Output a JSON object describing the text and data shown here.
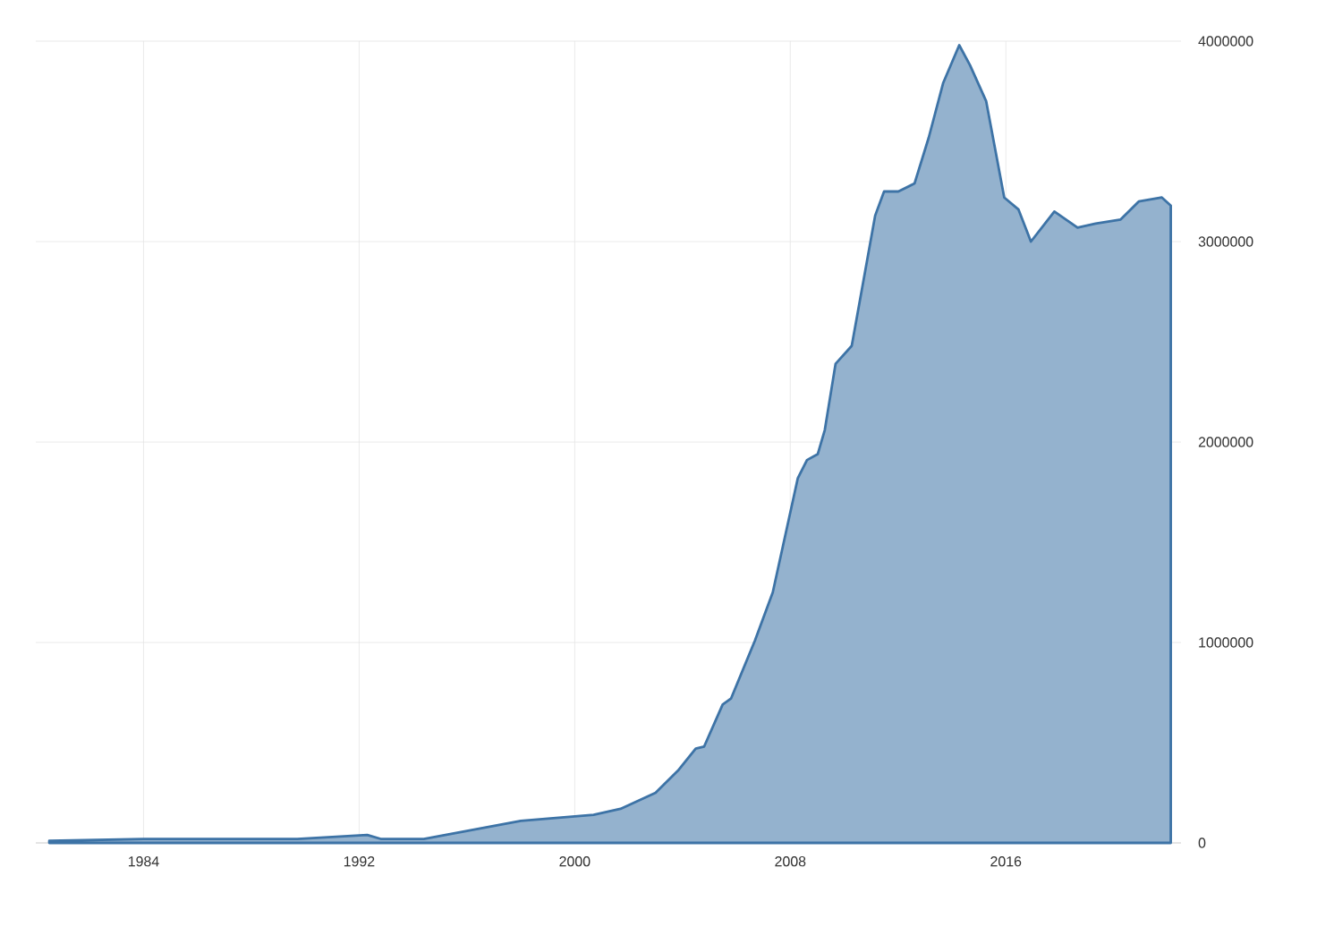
{
  "chart_data": {
    "type": "area",
    "color": "#3d73a6",
    "x": [
      1980.5,
      1984,
      1989.7,
      1992.3,
      1992.8,
      1994.4,
      1995.6,
      1998,
      2000.7,
      2001.7,
      2003,
      2003.83,
      2004.49,
      2004.8,
      2005.49,
      2005.8,
      2006.69,
      2007.35,
      2008.28,
      2008.62,
      2009.02,
      2009.28,
      2009.68,
      2010.28,
      2011.15,
      2011.48,
      2012.01,
      2012.61,
      2013.14,
      2013.67,
      2014.27,
      2014.67,
      2015.27,
      2015.94,
      2016.47,
      2016.93,
      2017.8,
      2018.66,
      2019.33,
      2020.26,
      2020.93,
      2021.79,
      2022.12
    ],
    "values": [
      10000,
      20000,
      20000,
      40000,
      20000,
      20000,
      50000,
      110000,
      140000,
      170000,
      250000,
      360000,
      470000,
      480000,
      690000,
      720000,
      1010000,
      1250000,
      1820000,
      1910000,
      1940000,
      2060000,
      2390000,
      2480000,
      3130000,
      3250000,
      3250000,
      3290000,
      3520000,
      3790000,
      3980000,
      3880000,
      3700000,
      3220000,
      3160000,
      3000000,
      3150000,
      3070000,
      3090000,
      3110000,
      3200000,
      3220000,
      3180000
    ],
    "xlim": [
      1980,
      2022.5
    ],
    "ylim": [
      0,
      4000000
    ],
    "xticks": [
      1984,
      1992,
      2000,
      2008,
      2016
    ],
    "yticks": [
      0,
      1000000,
      2000000,
      3000000,
      4000000
    ],
    "grid": true
  }
}
